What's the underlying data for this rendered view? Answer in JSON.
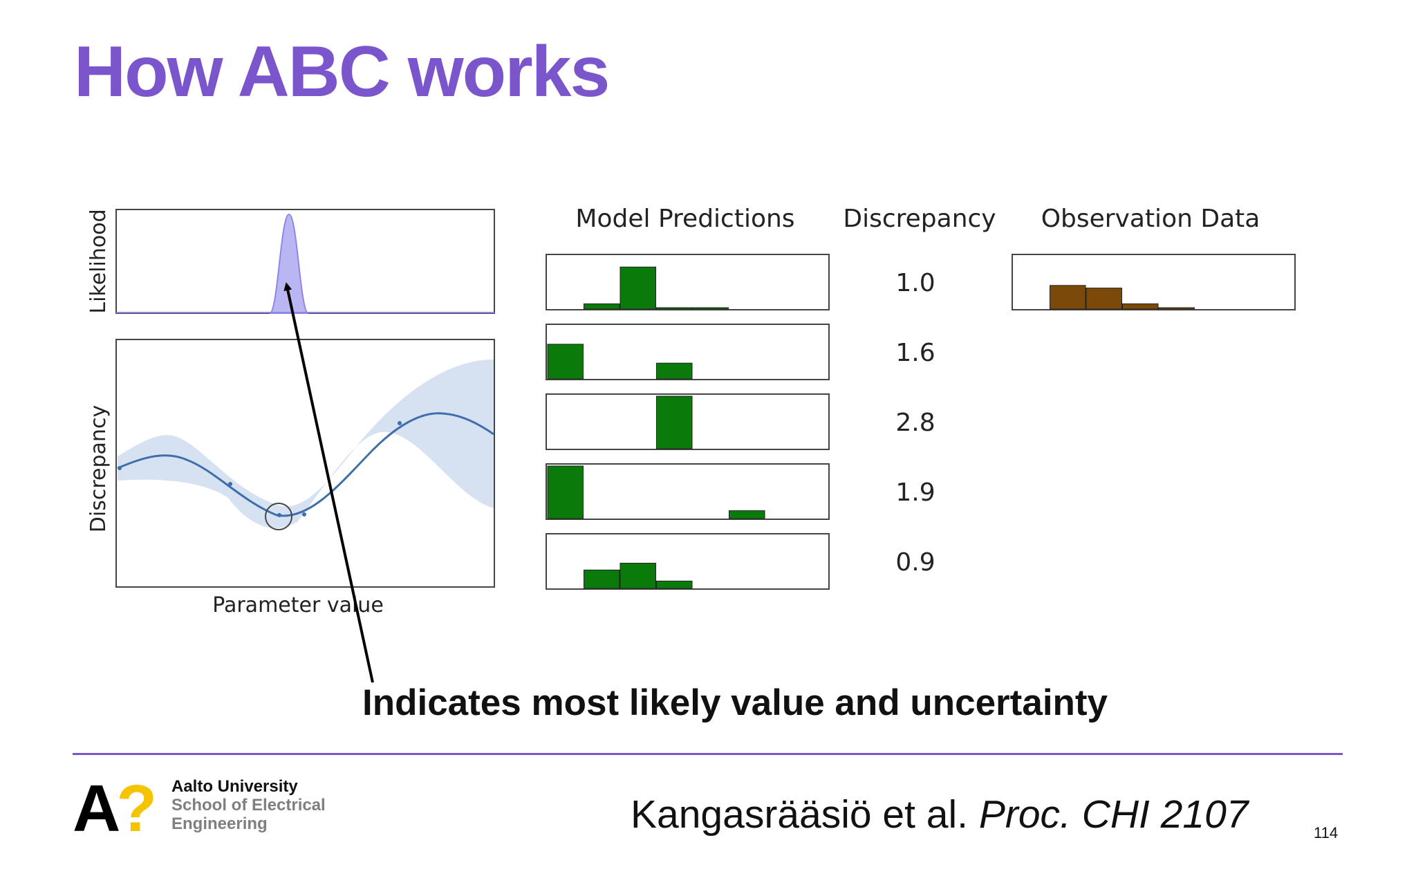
{
  "slide": {
    "title": "How ABC works",
    "caption": "Indicates most likely value and uncertainty",
    "reference_authors": "Kangasrääsiö et al.",
    "reference_venue": "Proc. CHI 2107",
    "page_number": "114"
  },
  "logo": {
    "mark_letter": "A",
    "mark_symbol": "?",
    "line1": "Aalto University",
    "line2": "School of Electrical",
    "line3": "Engineering",
    "colors": {
      "mark": "#000000",
      "symbol": "#f5c400"
    }
  },
  "figure": {
    "likelihood_ylabel": "Likelihood",
    "discrepancy_ylabel": "Discrepancy",
    "xlabel": "Parameter value",
    "model_predictions_header": "Model Predictions",
    "discrepancy_header": "Discrepancy",
    "observation_header": "Observation Data",
    "prediction_color": "#0a7a0a",
    "observation_color": "#7b4a08",
    "likelihood_color": "#b9b6f3"
  },
  "chart_data": {
    "type": "bar",
    "model_predictions": [
      {
        "discrepancy": "1.0",
        "values": [
          0,
          0.1,
          0.8,
          0.02,
          0.01,
          0,
          0,
          0
        ]
      },
      {
        "discrepancy": "1.6",
        "values": [
          0.66,
          0,
          0,
          0.3,
          0,
          0,
          0,
          0
        ]
      },
      {
        "discrepancy": "2.8",
        "values": [
          0,
          0,
          0,
          1.0,
          0,
          0,
          0,
          0
        ]
      },
      {
        "discrepancy": "1.9",
        "values": [
          1.0,
          0,
          0,
          0,
          0,
          0.15,
          0,
          0
        ]
      },
      {
        "discrepancy": "0.9",
        "values": [
          0,
          0.35,
          0.48,
          0.14,
          0,
          0,
          0,
          0
        ]
      }
    ],
    "observation_data": [
      0,
      0.45,
      0.4,
      0.1,
      0.02,
      0,
      0,
      0
    ]
  }
}
